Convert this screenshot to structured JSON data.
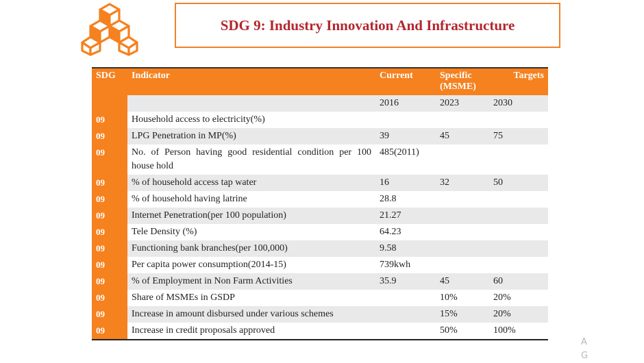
{
  "title": "SDG 9: Industry Innovation And Infrastructure",
  "colors": {
    "accent": "#f5811f",
    "title_text": "#b3262e",
    "row_shade": "#e9e9e9"
  },
  "table": {
    "headers": {
      "sdg": "SDG",
      "indicator": "Indicator",
      "current": "Current",
      "specific": "Specific (MSME)",
      "targets": "Targets"
    },
    "years": [
      "2016",
      "2023",
      "2030"
    ],
    "rows": [
      {
        "sdg": "09",
        "indicator": "Household access to electricity(%)",
        "current": "",
        "y2023": "",
        "y2030": ""
      },
      {
        "sdg": "09",
        "indicator": "LPG Penetration in MP(%)",
        "current": "39",
        "y2023": "45",
        "y2030": "75"
      },
      {
        "sdg": "09",
        "indicator": "No. of Person having good residential condition per 100 house hold",
        "current": "485(2011)",
        "y2023": "",
        "y2030": ""
      },
      {
        "sdg": "09",
        "indicator": "% of household access tap water",
        "current": "16",
        "y2023": "32",
        "y2030": "50"
      },
      {
        "sdg": "09",
        "indicator": "% of household having latrine",
        "current": "28.8",
        "y2023": "",
        "y2030": ""
      },
      {
        "sdg": "09",
        "indicator": "Internet Penetration(per 100 population)",
        "current": "21.27",
        "y2023": "",
        "y2030": ""
      },
      {
        "sdg": "09",
        "indicator": "Tele Density (%)",
        "current": "64.23",
        "y2023": "",
        "y2030": ""
      },
      {
        "sdg": "09",
        "indicator": "Functioning bank branches(per 100,000)",
        "current": "9.58",
        "y2023": "",
        "y2030": ""
      },
      {
        "sdg": "09",
        "indicator": "Per capita power consumption(2014-15)",
        "current": "739kwh",
        "y2023": "",
        "y2030": ""
      },
      {
        "sdg": "09",
        "indicator": "% of Employment in Non Farm Activities",
        "current": "35.9",
        "y2023": "45",
        "y2030": "60"
      },
      {
        "sdg": "09",
        "indicator": "Share of MSMEs in GSDP",
        "current": "",
        "y2023": "10%",
        "y2030": "20%"
      },
      {
        "sdg": "09",
        "indicator": "Increase in amount disbursed under various schemes",
        "current": "",
        "y2023": "15%",
        "y2030": "20%"
      },
      {
        "sdg": "09",
        "indicator": "Increase in credit proposals approved",
        "current": "",
        "y2023": "50%",
        "y2030": "100%"
      }
    ]
  },
  "side_letters": [
    "A",
    "G"
  ]
}
